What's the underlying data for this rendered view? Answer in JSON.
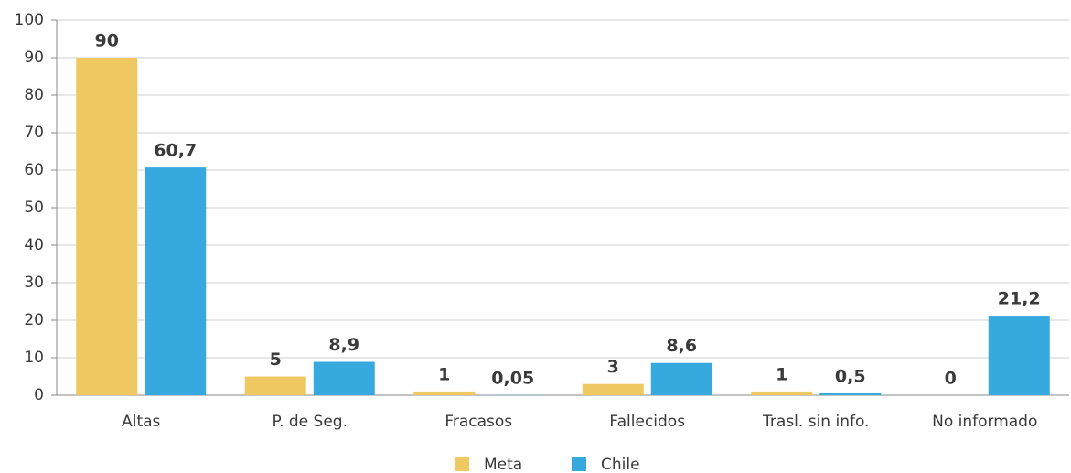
{
  "chart_data": {
    "type": "bar",
    "categories": [
      "Altas",
      "P. de Seg.",
      "Fracasos",
      "Fallecidos",
      "Trasl. sin info.",
      "No informado"
    ],
    "series": [
      {
        "name": "Meta",
        "color": "#f0c862",
        "values": [
          90,
          5,
          1,
          3,
          1,
          0
        ]
      },
      {
        "name": "Chile",
        "color": "#36a9df",
        "values": [
          60.7,
          8.9,
          0.05,
          8.6,
          0.5,
          21.2
        ],
        "value_labels": [
          "60,7",
          "8,9",
          "0,05",
          "8,6",
          "0,5",
          "21,2"
        ]
      }
    ],
    "ylim": [
      0,
      100
    ],
    "yticks": [
      0,
      10,
      20,
      30,
      40,
      50,
      60,
      70,
      80,
      90,
      100
    ],
    "grid": true,
    "legend": "bottom"
  }
}
